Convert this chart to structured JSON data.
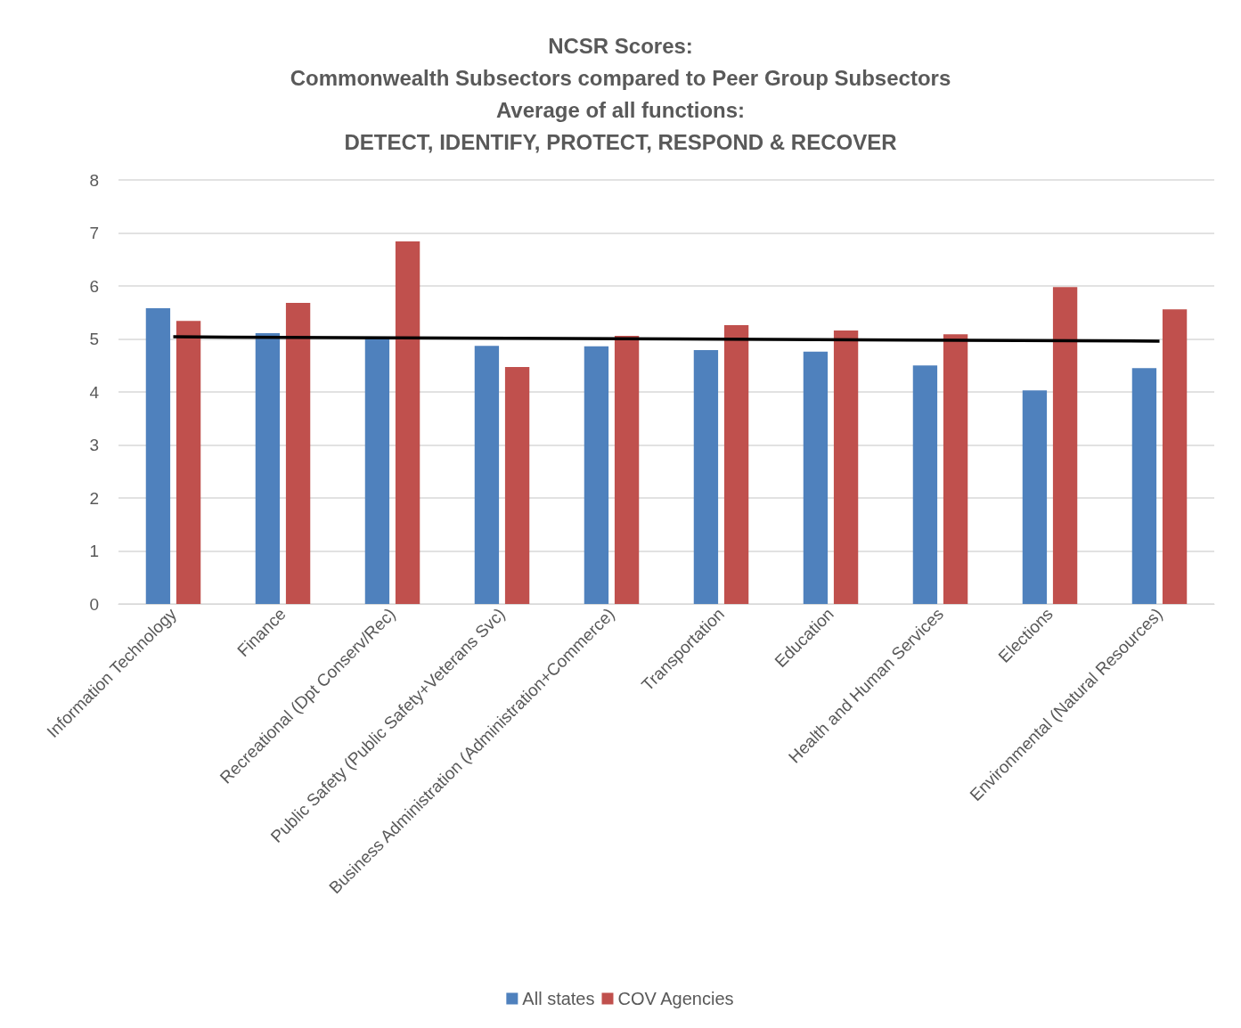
{
  "chart_data": {
    "type": "bar",
    "title": "NCSR Scores:\nCommonwealth Subsectors compared to Peer Group Subsectors\nAverage of all functions:\nDETECT, IDENTIFY, PROTECT, RESPOND & RECOVER",
    "categories": [
      "Information Technology",
      "Finance",
      "Recreational (Dpt Conserv/Rec)",
      "Public Safety (Public Safety+Veterans Svc)",
      "Business Administration (Administration+Commerce)",
      "Transportation",
      "Education",
      "Health and Human Services",
      "Elections",
      "Environmental (Natural Resources)"
    ],
    "series": [
      {
        "name": "All states",
        "color": "#4f81bd",
        "values": [
          5.58,
          5.11,
          5.03,
          4.87,
          4.86,
          4.79,
          4.76,
          4.5,
          4.03,
          4.45
        ]
      },
      {
        "name": "COV Agencies",
        "color": "#c0504d",
        "values": [
          5.34,
          5.68,
          6.84,
          4.47,
          5.06,
          5.26,
          5.16,
          5.09,
          5.98,
          5.56
        ]
      },
      {
        "type": "line",
        "color": "#000000",
        "x": [
          "Information Technology",
          "Environmental (Natural Resources)"
        ],
        "values": [
          5.04,
          4.96
        ]
      }
    ],
    "ylim": [
      0,
      8
    ],
    "yticks": [
      0,
      1,
      2,
      3,
      4,
      5,
      6,
      7,
      8
    ],
    "grid": "y",
    "legend": "bottom",
    "marker": "none",
    "line_style": "solid"
  }
}
